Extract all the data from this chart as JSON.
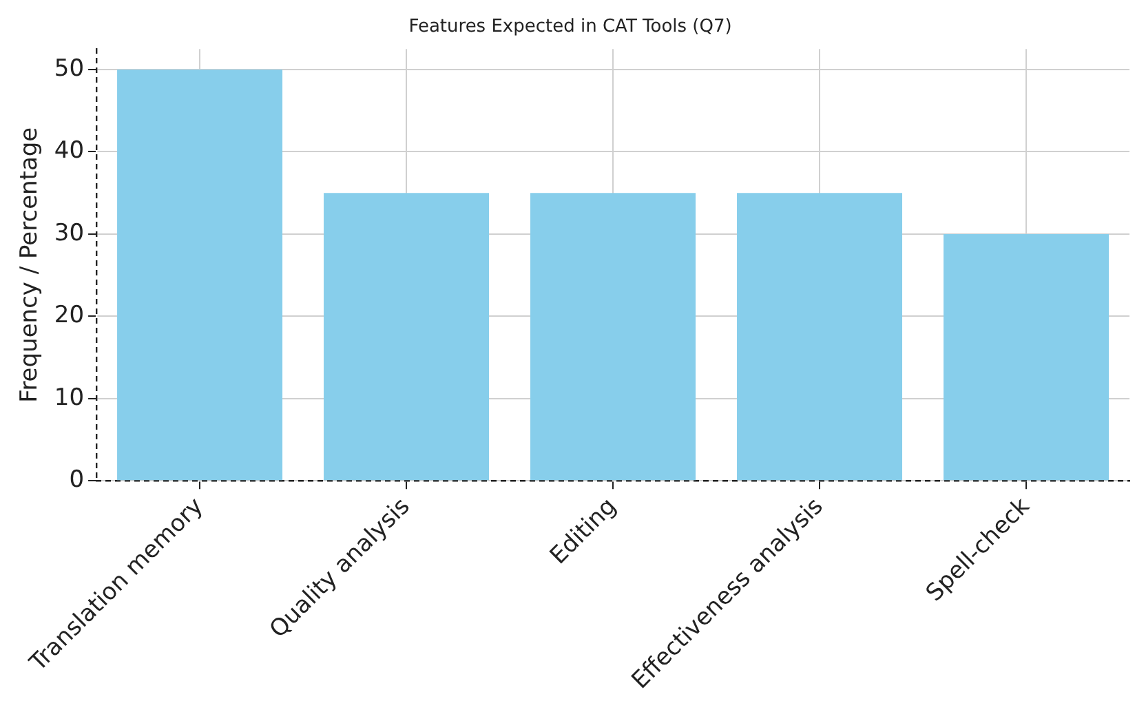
{
  "chart_data": {
    "type": "bar",
    "title": "Features Expected in CAT Tools (Q7)",
    "ylabel": "Frequency / Percentage",
    "categories": [
      "Translation memory",
      "Quality analysis",
      "Editing",
      "Effectiveness analysis",
      "Spell-check"
    ],
    "values": [
      50,
      35,
      35,
      35,
      30
    ],
    "color": "#87ceeb",
    "ylim": [
      0,
      52.5
    ],
    "yticks": [
      0,
      10,
      20,
      30,
      40,
      50
    ],
    "grid": true
  }
}
